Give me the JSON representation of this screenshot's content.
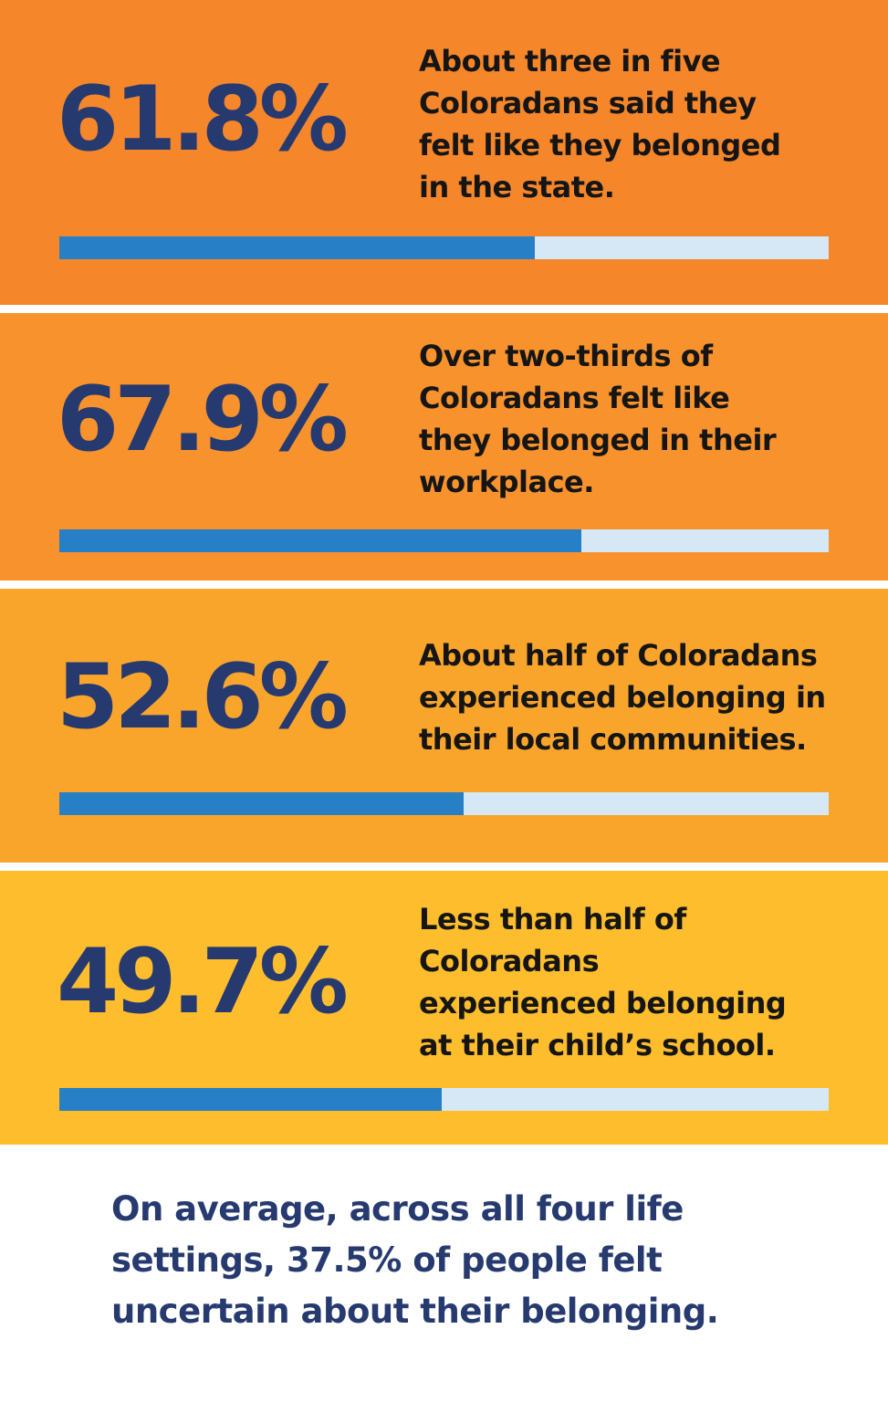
{
  "chart_data": {
    "type": "bar",
    "orientation": "horizontal",
    "ylim": [
      0,
      100
    ],
    "items": [
      {
        "value_label": "61.8%",
        "value": 61.8,
        "lines": [
          "About three in five",
          "Coloradans said they",
          "felt like they belonged",
          "in the state."
        ]
      },
      {
        "value_label": "67.9%",
        "value": 67.9,
        "lines": [
          "Over two-thirds of",
          "Coloradans felt like",
          "they belonged in their",
          "workplace."
        ]
      },
      {
        "value_label": "52.6%",
        "value": 52.6,
        "lines": [
          "About half of Coloradans",
          "experienced belonging in",
          "their local communities."
        ]
      },
      {
        "value_label": "49.7%",
        "value": 49.7,
        "lines": [
          "Less than half of",
          "Coloradans",
          "experienced belonging",
          "at their child’s school."
        ]
      }
    ],
    "summary_lines": [
      "On average, across all four life",
      "settings, 37.5% of people felt",
      "uncertain about their belonging."
    ]
  },
  "colors": {
    "panel_backgrounds": [
      "#F5862A",
      "#F7922D",
      "#F9A52C",
      "#FDBD2C"
    ],
    "bar_fill": "#2780C5",
    "bar_track": "#D6E7F6",
    "percent_text": "#273A70",
    "description_text": "#151515",
    "summary_text": "#273A70",
    "divider": "#ffffff"
  }
}
